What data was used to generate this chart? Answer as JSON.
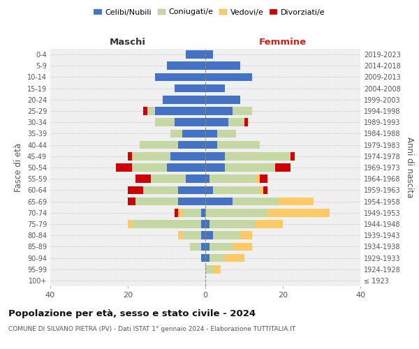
{
  "age_groups": [
    "100+",
    "95-99",
    "90-94",
    "85-89",
    "80-84",
    "75-79",
    "70-74",
    "65-69",
    "60-64",
    "55-59",
    "50-54",
    "45-49",
    "40-44",
    "35-39",
    "30-34",
    "25-29",
    "20-24",
    "15-19",
    "10-14",
    "5-9",
    "0-4"
  ],
  "birth_years": [
    "≤ 1923",
    "1924-1928",
    "1929-1933",
    "1934-1938",
    "1939-1943",
    "1944-1948",
    "1949-1953",
    "1954-1958",
    "1959-1963",
    "1964-1968",
    "1969-1973",
    "1974-1978",
    "1979-1983",
    "1984-1988",
    "1989-1993",
    "1994-1998",
    "1999-2003",
    "2004-2008",
    "2009-2013",
    "2014-2018",
    "2019-2023"
  ],
  "male_celibi": [
    0,
    0,
    1,
    1,
    1,
    1,
    1,
    7,
    7,
    5,
    10,
    9,
    7,
    6,
    8,
    13,
    11,
    8,
    13,
    10,
    5
  ],
  "male_coniugati": [
    0,
    0,
    0,
    3,
    5,
    18,
    5,
    11,
    9,
    9,
    9,
    10,
    10,
    3,
    5,
    2,
    0,
    0,
    0,
    0,
    0
  ],
  "male_vedovi": [
    0,
    0,
    0,
    0,
    1,
    1,
    1,
    0,
    0,
    0,
    0,
    0,
    0,
    0,
    0,
    0,
    0,
    0,
    0,
    0,
    0
  ],
  "male_divorziati": [
    0,
    0,
    0,
    0,
    0,
    0,
    1,
    2,
    4,
    4,
    4,
    1,
    0,
    0,
    0,
    1,
    0,
    0,
    0,
    0,
    0
  ],
  "female_celibi": [
    0,
    0,
    1,
    1,
    2,
    1,
    0,
    7,
    2,
    1,
    5,
    5,
    3,
    3,
    6,
    7,
    9,
    5,
    12,
    9,
    2
  ],
  "female_coniugati": [
    0,
    2,
    4,
    6,
    7,
    12,
    16,
    12,
    12,
    12,
    13,
    17,
    11,
    5,
    4,
    5,
    0,
    0,
    0,
    0,
    0
  ],
  "female_vedovi": [
    0,
    2,
    5,
    5,
    3,
    7,
    16,
    9,
    1,
    1,
    0,
    0,
    0,
    0,
    0,
    0,
    0,
    0,
    0,
    0,
    0
  ],
  "female_divorziati": [
    0,
    0,
    0,
    0,
    0,
    0,
    0,
    0,
    1,
    2,
    4,
    1,
    0,
    0,
    1,
    0,
    0,
    0,
    0,
    0,
    0
  ],
  "colors": {
    "celibi": "#4472c4",
    "coniugati": "#c5d8a4",
    "vedovi": "#ffc966",
    "divorziati": "#cc0000"
  },
  "xlim": 40,
  "title": "Popolazione per età, sesso e stato civile - 2024",
  "subtitle": "COMUNE DI SILVANO PIETRA (PV) - Dati ISTAT 1° gennaio 2024 - Elaborazione TUTTITALIA.IT",
  "xlabel_left": "Maschi",
  "xlabel_right": "Femmine",
  "ylabel_left": "Fasce di età",
  "ylabel_right": "Anni di nascita",
  "legend_labels": [
    "Celibi/Nubili",
    "Coniugati/e",
    "Vedovi/e",
    "Divorziati/e"
  ],
  "bg_color": "#f0f0f0"
}
